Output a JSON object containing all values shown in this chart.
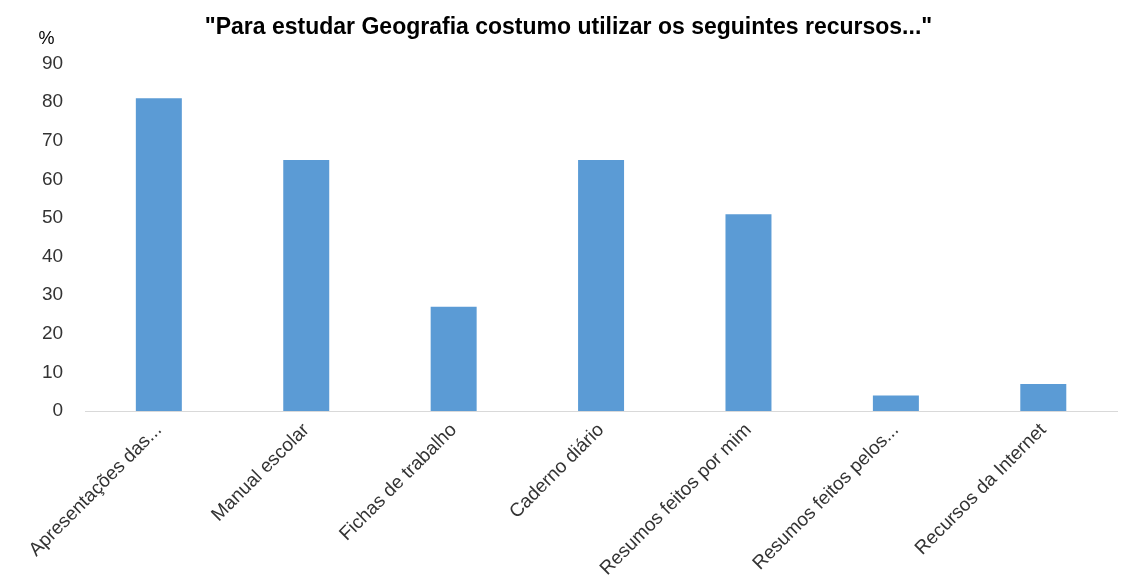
{
  "chart_data": {
    "type": "bar",
    "title": "\"Para estudar Geografia costumo utilizar os seguintes recursos...\"",
    "ylabel": "%",
    "categories": [
      "Apresentações das...",
      "Manual escolar",
      "Fichas de trabalho",
      "Caderno diário",
      "Resumos feitos por mim",
      "Resumos feitos pelos...",
      "Recursos da Internet"
    ],
    "values": [
      81,
      65,
      27,
      65,
      51,
      4,
      7
    ],
    "color": "#5b9bd5",
    "ylim": [
      0,
      90
    ],
    "yticks": [
      0,
      10,
      20,
      30,
      40,
      50,
      60,
      70,
      80,
      90
    ],
    "grid": false,
    "legend": false
  }
}
